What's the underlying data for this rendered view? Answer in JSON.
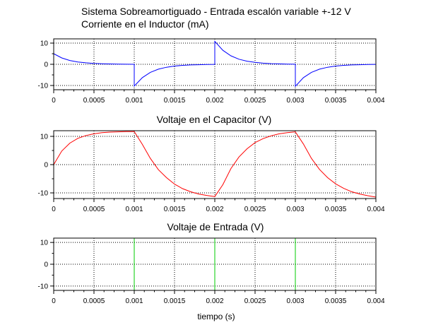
{
  "chart_data": [
    {
      "type": "line",
      "title": "Sistema Sobreamortiguado - Entrada escalón variable +-12 V",
      "subtitle": "Corriente en el Inductor (mA)",
      "xlabel": "",
      "ylabel": "",
      "xlim": [
        0,
        0.004
      ],
      "ylim": [
        -12,
        12
      ],
      "x_ticks": [
        0,
        0.0005,
        0.001,
        0.0015,
        0.002,
        0.0025,
        0.003,
        0.0035,
        0.004
      ],
      "x_tick_labels": [
        "0",
        "0.0005",
        "0.001",
        "0.0015",
        "0.002",
        "0.0025",
        "0.003",
        "0.0035",
        "0.004"
      ],
      "y_ticks": [
        -10,
        0,
        10
      ],
      "y_tick_labels": [
        "-10",
        "0",
        "10"
      ],
      "grid": true,
      "color": "#0000ff",
      "series": [
        {
          "x": [
            0,
            0.0001,
            0.0002,
            0.0003,
            0.0004,
            0.0005,
            0.0006,
            0.0007,
            0.0008,
            0.0009,
            0.001,
            0.001,
            0.0011,
            0.0012,
            0.0013,
            0.0014,
            0.0015,
            0.0016,
            0.0017,
            0.0018,
            0.0019,
            0.002,
            0.002,
            0.0021,
            0.0022,
            0.0023,
            0.0024,
            0.0025,
            0.0026,
            0.0027,
            0.0028,
            0.0029,
            0.003,
            0.003,
            0.0031,
            0.0032,
            0.0033,
            0.0034,
            0.0035,
            0.0036,
            0.0037,
            0.0038,
            0.0039,
            0.004
          ],
          "y": [
            5.0,
            3.0,
            1.8,
            1.1,
            0.7,
            0.4,
            0.25,
            0.15,
            0.1,
            0.05,
            0.0,
            -10.3,
            -6.3,
            -3.8,
            -2.3,
            -1.4,
            -0.85,
            -0.5,
            -0.3,
            -0.2,
            -0.1,
            -0.05,
            10.8,
            6.6,
            4.0,
            2.4,
            1.45,
            0.9,
            0.55,
            0.3,
            0.2,
            0.1,
            0.05,
            -10.4,
            -6.3,
            -3.8,
            -2.3,
            -1.4,
            -0.85,
            -0.5,
            -0.3,
            -0.2,
            -0.1,
            -0.05
          ]
        }
      ]
    },
    {
      "type": "line",
      "title": "Voltaje en el Capacitor (V)",
      "xlabel": "",
      "ylabel": "",
      "xlim": [
        0,
        0.004
      ],
      "ylim": [
        -12,
        12
      ],
      "x_ticks": [
        0,
        0.0005,
        0.001,
        0.0015,
        0.002,
        0.0025,
        0.003,
        0.0035,
        0.004
      ],
      "x_tick_labels": [
        "0",
        "0.0005",
        "0.001",
        "0.0015",
        "0.002",
        "0.0025",
        "0.003",
        "0.0035",
        "0.004"
      ],
      "y_ticks": [
        -10,
        0,
        10
      ],
      "y_tick_labels": [
        "-10",
        "0",
        "10"
      ],
      "grid": true,
      "color": "#ff0000",
      "series": [
        {
          "x": [
            0,
            0.0001,
            0.0002,
            0.0003,
            0.0004,
            0.0005,
            0.0006,
            0.0007,
            0.0008,
            0.0009,
            0.001,
            0.0011,
            0.0012,
            0.0013,
            0.0014,
            0.0015,
            0.0016,
            0.0017,
            0.0018,
            0.0019,
            0.002,
            0.0021,
            0.0022,
            0.0023,
            0.0024,
            0.0025,
            0.0026,
            0.0027,
            0.0028,
            0.0029,
            0.003,
            0.0031,
            0.0032,
            0.0033,
            0.0034,
            0.0035,
            0.0036,
            0.0037,
            0.0038,
            0.0039,
            0.004
          ],
          "y": [
            0.0,
            4.8,
            7.6,
            9.3,
            10.3,
            10.9,
            11.3,
            11.5,
            11.6,
            11.7,
            11.7,
            7.2,
            2.2,
            -1.8,
            -4.6,
            -6.9,
            -8.5,
            -9.6,
            -10.4,
            -10.9,
            -11.3,
            -7.1,
            -1.4,
            2.7,
            5.6,
            7.8,
            9.2,
            10.2,
            10.9,
            11.3,
            11.6,
            7.3,
            2.2,
            -1.7,
            -4.6,
            -6.8,
            -8.4,
            -9.6,
            -10.4,
            -11.0,
            -11.5
          ]
        }
      ]
    },
    {
      "type": "line",
      "title": "Voltaje de Entrada (V)",
      "xlabel": "tiempo (s)",
      "ylabel": "",
      "xlim": [
        0,
        0.004
      ],
      "ylim": [
        -12,
        12
      ],
      "x_ticks": [
        0,
        0.0005,
        0.001,
        0.0015,
        0.002,
        0.0025,
        0.003,
        0.0035,
        0.004
      ],
      "x_tick_labels": [
        "0",
        "0.0005",
        "0.001",
        "0.0015",
        "0.002",
        "0.0025",
        "0.003",
        "0.0035",
        "0.004"
      ],
      "y_ticks": [
        -10,
        0,
        10
      ],
      "y_tick_labels": [
        "-10",
        "0",
        "10"
      ],
      "grid": true,
      "color": "#00cc00",
      "series": [
        {
          "x": [
            0,
            0.001,
            0.001,
            0.002,
            0.002,
            0.003,
            0.003,
            0.004
          ],
          "y": [
            12,
            12,
            -12,
            -12,
            12,
            12,
            -12,
            -12
          ]
        }
      ]
    }
  ]
}
